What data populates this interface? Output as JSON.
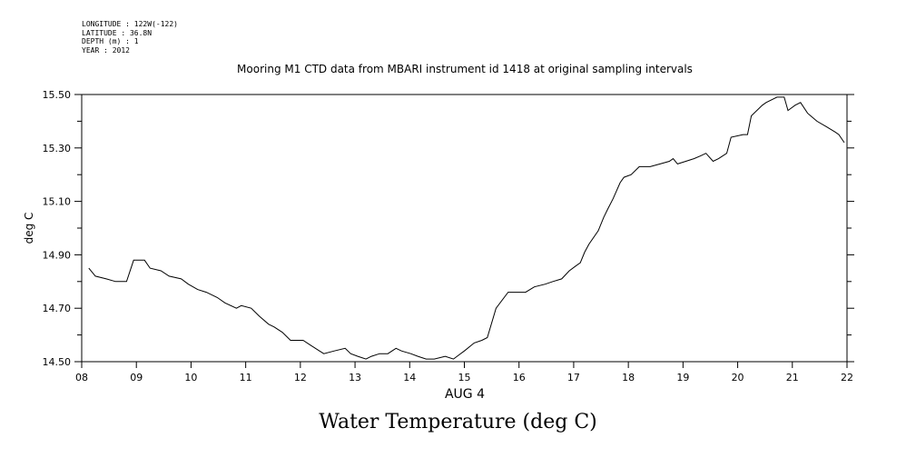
{
  "metadata": [
    "LONGITUDE : 122W(-122)",
    "LATITUDE : 36.8N",
    "DEPTH (m) : 1",
    "YEAR : 2012"
  ],
  "chart_data": {
    "type": "line",
    "title": "Mooring M1 CTD data from MBARI instrument id 1418 at original sampling intervals",
    "xlabel": "AUG 4",
    "ylabel": "deg C",
    "footer_title": "Water Temperature (deg C)",
    "xlim": [
      8,
      22
    ],
    "ylim": [
      14.5,
      15.5
    ],
    "x_ticks": [
      "08",
      "09",
      "10",
      "11",
      "12",
      "13",
      "14",
      "15",
      "16",
      "17",
      "18",
      "19",
      "20",
      "21",
      "22"
    ],
    "y_ticks": [
      "14.50",
      "14.70",
      "14.90",
      "15.10",
      "15.30",
      "15.50"
    ],
    "grid": false,
    "line_color": "#000000",
    "x": [
      8.13,
      8.25,
      8.45,
      8.62,
      8.82,
      8.95,
      9.15,
      9.25,
      9.45,
      9.6,
      9.82,
      9.95,
      10.12,
      10.28,
      10.48,
      10.62,
      10.83,
      10.92,
      11.1,
      11.25,
      11.42,
      11.52,
      11.67,
      11.82,
      12.05,
      12.2,
      12.35,
      12.43,
      12.62,
      12.82,
      12.92,
      13.05,
      13.2,
      13.3,
      13.45,
      13.6,
      13.75,
      13.85,
      14.02,
      14.15,
      14.3,
      14.45,
      14.65,
      14.8,
      15.0,
      15.18,
      15.32,
      15.42,
      15.58,
      15.8,
      15.95,
      16.12,
      16.28,
      16.48,
      16.62,
      16.78,
      16.92,
      17.05,
      17.12,
      17.2,
      17.28,
      17.45,
      17.55,
      17.62,
      17.72,
      17.85,
      17.92,
      18.05,
      18.2,
      18.4,
      18.58,
      18.75,
      18.82,
      18.9,
      19.05,
      19.2,
      19.32,
      19.42,
      19.55,
      19.65,
      19.8,
      19.88,
      20.1,
      20.18,
      20.25,
      20.45,
      20.52,
      20.72,
      20.85,
      20.92,
      21.05,
      21.15,
      21.28,
      21.45,
      21.62,
      21.78,
      21.85,
      21.95
    ],
    "values": [
      14.85,
      14.82,
      14.81,
      14.8,
      14.8,
      14.88,
      14.88,
      14.85,
      14.84,
      14.82,
      14.81,
      14.79,
      14.77,
      14.76,
      14.74,
      14.72,
      14.7,
      14.71,
      14.7,
      14.67,
      14.64,
      14.63,
      14.61,
      14.58,
      14.58,
      14.56,
      14.54,
      14.53,
      14.54,
      14.55,
      14.53,
      14.52,
      14.51,
      14.52,
      14.53,
      14.53,
      14.55,
      14.54,
      14.53,
      14.52,
      14.51,
      14.51,
      14.52,
      14.51,
      14.54,
      14.57,
      14.58,
      14.59,
      14.7,
      14.76,
      14.76,
      14.76,
      14.78,
      14.79,
      14.8,
      14.81,
      14.84,
      14.86,
      14.87,
      14.91,
      14.94,
      14.99,
      15.04,
      15.07,
      15.11,
      15.17,
      15.19,
      15.2,
      15.23,
      15.23,
      15.24,
      15.25,
      15.26,
      15.24,
      15.25,
      15.26,
      15.27,
      15.28,
      15.25,
      15.26,
      15.28,
      15.34,
      15.35,
      15.35,
      15.42,
      15.46,
      15.47,
      15.49,
      15.49,
      15.44,
      15.46,
      15.47,
      15.43,
      15.4,
      15.38,
      15.36,
      15.35,
      15.32
    ]
  }
}
